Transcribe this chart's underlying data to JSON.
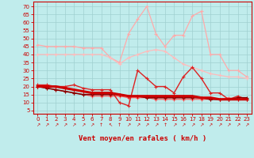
{
  "background_color": "#c0ecec",
  "grid_color": "#a0d0d0",
  "x_values": [
    0,
    1,
    2,
    3,
    4,
    5,
    6,
    7,
    8,
    9,
    10,
    11,
    12,
    13,
    14,
    15,
    16,
    17,
    18,
    19,
    20,
    21,
    22,
    23
  ],
  "arrow_chars": [
    "↗",
    "↗",
    "↗",
    "↗",
    "↗",
    "↗",
    "↗",
    "↑",
    "↖",
    "↑",
    "↗",
    "↗",
    "↗",
    "↗",
    "↑",
    "↗",
    "↗",
    "↗",
    "↗",
    "↗",
    "↗",
    "↗",
    "↗",
    "↗"
  ],
  "series": [
    {
      "data": [
        46,
        45,
        45,
        45,
        45,
        44,
        44,
        44,
        38,
        35,
        53,
        62,
        70,
        53,
        45,
        52,
        52,
        64,
        67,
        40,
        40,
        30,
        30,
        26
      ],
      "color": "#ffaaaa",
      "lw": 0.9,
      "marker": "+",
      "ms": 3.5,
      "zorder": 2
    },
    {
      "data": [
        40,
        40,
        40,
        40,
        40,
        40,
        40,
        40,
        38,
        34,
        38,
        40,
        42,
        43,
        42,
        38,
        34,
        32,
        30,
        28,
        27,
        26,
        26,
        25
      ],
      "color": "#ffbbbb",
      "lw": 0.9,
      "marker": "+",
      "ms": 3.5,
      "zorder": 2
    },
    {
      "data": [
        21,
        21,
        20,
        20,
        21,
        19,
        18,
        18,
        18,
        10,
        8,
        30,
        25,
        20,
        20,
        16,
        26,
        32,
        25,
        16,
        16,
        12,
        14,
        12
      ],
      "color": "#dd2222",
      "lw": 1.0,
      "marker": "+",
      "ms": 3.5,
      "zorder": 3
    },
    {
      "data": [
        20,
        20,
        20,
        19,
        18,
        17,
        16,
        16,
        16,
        15,
        14,
        14,
        14,
        14,
        14,
        14,
        14,
        14,
        13,
        13,
        12,
        12,
        12,
        12
      ],
      "color": "#cc0000",
      "lw": 2.2,
      "marker": "+",
      "ms": 3.5,
      "zorder": 4
    },
    {
      "data": [
        20,
        19,
        18,
        17,
        16,
        15,
        15,
        15,
        15,
        15,
        14,
        14,
        13,
        13,
        13,
        13,
        13,
        13,
        13,
        12,
        12,
        12,
        13,
        13
      ],
      "color": "#880000",
      "lw": 1.2,
      "marker": "+",
      "ms": 3.5,
      "zorder": 3
    },
    {
      "data": [
        20,
        19,
        18,
        17,
        16,
        15,
        14,
        14,
        14,
        14,
        13,
        13,
        13,
        12,
        12,
        12,
        12,
        12,
        12,
        12,
        12,
        13,
        12,
        12
      ],
      "color": "#ff5555",
      "lw": 0.8,
      "marker": "+",
      "ms": 3.0,
      "zorder": 2
    }
  ],
  "xlabel": "Vent moyen/en rafales ( km/h )",
  "xlabel_color": "#cc0000",
  "xlabel_fontsize": 6.5,
  "ylabel_values": [
    5,
    10,
    15,
    20,
    25,
    30,
    35,
    40,
    45,
    50,
    55,
    60,
    65,
    70
  ],
  "ylim": [
    3,
    73
  ],
  "xlim": [
    -0.5,
    23.5
  ],
  "tick_color": "#cc0000",
  "tick_fontsize": 5.0,
  "axis_color": "#cc0000"
}
